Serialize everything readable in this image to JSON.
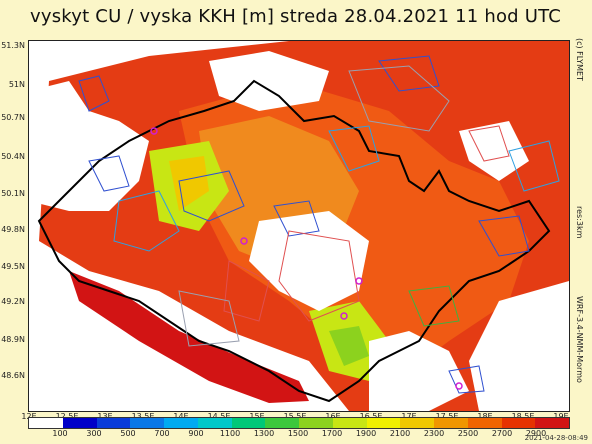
{
  "title": "vyskyt CU / vyska KKH [m] streda 28.04.2021 11 hod UTC",
  "credit": "(c) FLYMET",
  "resolution": "res:3km",
  "model": "WRF-3.4-NMM-Mormo",
  "timestamp": "2021-04-28-08:49",
  "lat_labels": [
    "51.3N",
    "51N",
    "50.7N",
    "50.4N",
    "50.1N",
    "49.8N",
    "49.5N",
    "49.2N",
    "48.9N",
    "48.6N"
  ],
  "lon_labels": [
    "12E",
    "12.5E",
    "13E",
    "13.5E",
    "14E",
    "14.5E",
    "15E",
    "15.5E",
    "16E",
    "16.5E",
    "17E",
    "17.5E",
    "18E",
    "18.5E",
    "19E"
  ],
  "colorbar": {
    "labels": [
      "100",
      "300",
      "500",
      "700",
      "900",
      "1100",
      "1300",
      "1500",
      "1700",
      "1900",
      "2100",
      "2300",
      "2500",
      "2700",
      "2900"
    ],
    "colors": [
      "#ffffff",
      "#0000c8",
      "#0a3cd8",
      "#0a78e6",
      "#00aaf0",
      "#00c8c8",
      "#00c878",
      "#3cc83c",
      "#8cd21e",
      "#c8e614",
      "#f0f000",
      "#f0c800",
      "#f09600",
      "#f06400",
      "#e63200",
      "#d21414"
    ]
  }
}
